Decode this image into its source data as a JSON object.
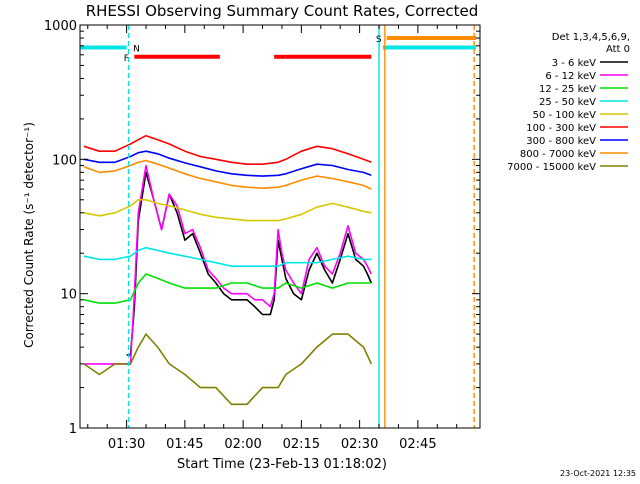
{
  "chart_data": {
    "type": "line",
    "title": "RHESSI Observing Summary Count Rates, Corrected",
    "ylabel": "Corrected Count Rate (s⁻¹ detector⁻¹)",
    "xlabel": "Start Time (23-Feb-13 01:18:02)",
    "y_scale": "log",
    "ylim": [
      1,
      1000
    ],
    "y_ticks": [
      {
        "value": 1,
        "label": "1"
      },
      {
        "value": 10,
        "label": "10"
      },
      {
        "value": 100,
        "label": "100"
      },
      {
        "value": 1000,
        "label": "1000"
      }
    ],
    "x_ticks": [
      {
        "minutes": 90,
        "label": "01:30"
      },
      {
        "minutes": 105,
        "label": "01:45"
      },
      {
        "minutes": 120,
        "label": "02:00"
      },
      {
        "minutes": 135,
        "label": "02:15"
      },
      {
        "minutes": 150,
        "label": "02:30"
      },
      {
        "minutes": 165,
        "label": "02:45"
      }
    ],
    "xlim_minutes": [
      78,
      181
    ],
    "x_unit": "minutes after 00:00 on 23-Feb-13",
    "grid": false,
    "legend": {
      "placement": "top-right",
      "header": [
        "Det 1,3,4,5,6,9,",
        "Att 0"
      ],
      "entries": [
        {
          "label": "3 - 6 keV",
          "color": "#000000"
        },
        {
          "label": "6 - 12 keV",
          "color": "#ff00ff"
        },
        {
          "label": "12 - 25 keV",
          "color": "#00e000"
        },
        {
          "label": "25 - 50 keV",
          "color": "#00e5e5"
        },
        {
          "label": "50 - 100 keV",
          "color": "#d4c800"
        },
        {
          "label": "100 - 300 keV",
          "color": "#ff0000"
        },
        {
          "label": "300 - 800 keV",
          "color": "#0000ff"
        },
        {
          "label": "800 - 7000 keV",
          "color": "#ff8c00"
        },
        {
          "label": "7000 - 15000 keV",
          "color": "#808000"
        }
      ]
    },
    "series": [
      {
        "name": "3 - 6 keV",
        "color": "#000000",
        "x": [
          90,
          91,
          92,
          93,
          95,
          97,
          99,
          101,
          103,
          105,
          107,
          109,
          111,
          113,
          115,
          117,
          119,
          121,
          123,
          125,
          127,
          128,
          129,
          130,
          131,
          133,
          135,
          137,
          139,
          141,
          143,
          145,
          147,
          149,
          151,
          152,
          153
        ],
        "y": [
          3.5,
          3.5,
          8,
          35,
          80,
          50,
          30,
          55,
          40,
          25,
          28,
          20,
          14,
          12,
          10,
          9,
          9,
          9,
          8,
          7,
          7,
          9,
          25,
          18,
          13,
          10,
          9,
          15,
          20,
          15,
          12,
          18,
          28,
          18,
          16,
          14,
          12
        ]
      },
      {
        "name": "6 - 12 keV",
        "color": "#ff00ff",
        "x": [
          79,
          82,
          85,
          88,
          90,
          91,
          92,
          93,
          95,
          97,
          99,
          101,
          103,
          105,
          107,
          109,
          111,
          113,
          115,
          117,
          119,
          121,
          123,
          125,
          127,
          128,
          129,
          130,
          131,
          133,
          135,
          137,
          139,
          141,
          143,
          145,
          147,
          149,
          151,
          152,
          153
        ],
        "y": [
          3,
          3,
          3,
          3,
          3,
          3,
          10,
          40,
          90,
          50,
          30,
          55,
          45,
          28,
          30,
          22,
          15,
          13,
          11,
          10,
          10,
          10,
          9,
          9,
          8,
          10,
          30,
          20,
          15,
          12,
          10,
          18,
          22,
          16,
          14,
          20,
          32,
          20,
          18,
          16,
          14
        ]
      },
      {
        "name": "12 - 25 keV",
        "color": "#00e000",
        "x": [
          79,
          83,
          87,
          91,
          93,
          95,
          98,
          101,
          105,
          109,
          113,
          117,
          121,
          125,
          129,
          131,
          135,
          139,
          143,
          147,
          151,
          153
        ],
        "y": [
          9,
          8.5,
          8.5,
          9,
          12,
          14,
          13,
          12,
          11,
          11,
          11,
          12,
          12,
          11,
          11,
          12,
          11,
          12,
          11,
          12,
          12,
          12
        ]
      },
      {
        "name": "25 - 50 keV",
        "color": "#00e5e5",
        "x": [
          79,
          83,
          87,
          91,
          93,
          95,
          98,
          101,
          105,
          109,
          113,
          117,
          121,
          125,
          129,
          131,
          135,
          139,
          143,
          147,
          151,
          153
        ],
        "y": [
          19,
          18,
          18,
          19,
          21,
          22,
          21,
          20,
          19,
          18,
          17,
          16,
          16,
          16,
          16,
          17,
          17,
          17,
          18,
          19,
          18,
          18
        ]
      },
      {
        "name": "50 - 100 keV",
        "color": "#d4c800",
        "x": [
          79,
          83,
          87,
          91,
          93,
          95,
          98,
          101,
          105,
          109,
          113,
          117,
          121,
          125,
          129,
          131,
          135,
          139,
          143,
          147,
          151,
          153
        ],
        "y": [
          40,
          38,
          40,
          45,
          50,
          50,
          47,
          45,
          42,
          39,
          37,
          36,
          35,
          35,
          35,
          36,
          39,
          44,
          47,
          44,
          41,
          40
        ]
      },
      {
        "name": "100 - 300 keV",
        "color": "#ff0000",
        "x": [
          79,
          83,
          87,
          91,
          93,
          95,
          98,
          101,
          105,
          109,
          113,
          117,
          121,
          125,
          129,
          131,
          135,
          139,
          143,
          147,
          151,
          153
        ],
        "y": [
          125,
          115,
          115,
          130,
          140,
          150,
          140,
          130,
          115,
          105,
          100,
          95,
          92,
          92,
          95,
          100,
          115,
          125,
          120,
          110,
          100,
          95
        ]
      },
      {
        "name": "300 - 800 keV",
        "color": "#0000ff",
        "x": [
          79,
          83,
          87,
          91,
          93,
          95,
          98,
          101,
          105,
          109,
          113,
          117,
          121,
          125,
          129,
          131,
          135,
          139,
          143,
          147,
          151,
          153
        ],
        "y": [
          100,
          95,
          95,
          105,
          112,
          115,
          110,
          102,
          94,
          88,
          82,
          78,
          76,
          75,
          76,
          78,
          85,
          92,
          90,
          84,
          80,
          76
        ]
      },
      {
        "name": "800 - 7000 keV",
        "color": "#ff8c00",
        "x": [
          79,
          83,
          87,
          91,
          93,
          95,
          98,
          101,
          105,
          109,
          113,
          117,
          121,
          125,
          129,
          131,
          135,
          139,
          143,
          147,
          151,
          153
        ],
        "y": [
          88,
          80,
          82,
          90,
          95,
          98,
          92,
          86,
          78,
          72,
          68,
          64,
          62,
          61,
          62,
          64,
          70,
          75,
          72,
          68,
          64,
          60
        ]
      },
      {
        "name": "7000 - 15000 keV",
        "color": "#808000",
        "x": [
          79,
          83,
          87,
          91,
          93,
          95,
          98,
          101,
          105,
          109,
          113,
          117,
          121,
          125,
          129,
          131,
          135,
          139,
          143,
          147,
          151,
          153
        ],
        "y": [
          3,
          2.5,
          3,
          3,
          4,
          5,
          4,
          3,
          2.5,
          2,
          2,
          1.5,
          1.5,
          2,
          2,
          2.5,
          3,
          4,
          5,
          5,
          4,
          3
        ]
      }
    ],
    "status_bars": [
      {
        "label": "",
        "color": "#00e5e5",
        "segments": [
          [
            78,
            90
          ],
          [
            156,
            180
          ]
        ],
        "level": 680
      },
      {
        "label": "N",
        "color": "#00e5e5",
        "segments": [],
        "level": 680
      },
      {
        "label": "F",
        "color": "#ff0000",
        "segments": [
          [
            92,
            114
          ],
          [
            128,
            131
          ],
          [
            131,
            153
          ]
        ],
        "level": 580
      },
      {
        "label": "S",
        "color": "#ff8c00",
        "segments": [
          [
            157,
            180
          ]
        ],
        "level": 800
      }
    ],
    "vertical_lines": [
      {
        "minutes": 90.5,
        "color": "#00e5e5",
        "style": "dashed"
      },
      {
        "minutes": 155.0,
        "color": "#00e5e5",
        "style": "solid"
      },
      {
        "minutes": 156.5,
        "color": "#ff8c00",
        "style": "solid"
      },
      {
        "minutes": 179.5,
        "color": "#ff8c00",
        "style": "dashed"
      }
    ],
    "footer_timestamp": "23-Oct-2021 12:35"
  }
}
